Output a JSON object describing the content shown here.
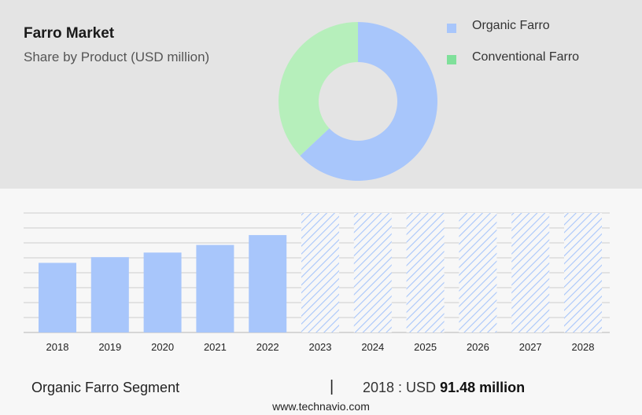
{
  "header": {
    "title": "Farro Market",
    "subtitle": "Share by Product (USD million)"
  },
  "legend": [
    {
      "label": "Organic Farro",
      "color": "#a8c6fb"
    },
    {
      "label": "Conventional Farro",
      "color": "#7fe09a"
    }
  ],
  "colors": {
    "organic": "#a8c6fb",
    "conventional": "#b6efbb",
    "gridline": "#cccccc",
    "forecast_hatch": "#a8c6fb"
  },
  "footer": {
    "segment": "Organic Farro Segment",
    "divider": "|",
    "year_label": "2018 : USD ",
    "value_label": "91.48 million"
  },
  "site": "www.technavio.com",
  "chart_data": [
    {
      "type": "pie",
      "style": "donut",
      "title": "Share by Product (USD million)",
      "slices": [
        {
          "name": "Organic Farro",
          "value": 63
        },
        {
          "name": "Conventional Farro",
          "value": 37
        }
      ]
    },
    {
      "type": "bar",
      "categories": [
        "2018",
        "2019",
        "2020",
        "2021",
        "2022",
        "2023",
        "2024",
        "2025",
        "2026",
        "2027",
        "2028"
      ],
      "values": [
        91.48,
        99,
        105,
        115,
        128,
        null,
        null,
        null,
        null,
        null,
        null
      ],
      "forecast_categories": [
        "2023",
        "2024",
        "2025",
        "2026",
        "2027",
        "2028"
      ],
      "ylim": [
        0,
        157
      ],
      "grid": true
    }
  ]
}
